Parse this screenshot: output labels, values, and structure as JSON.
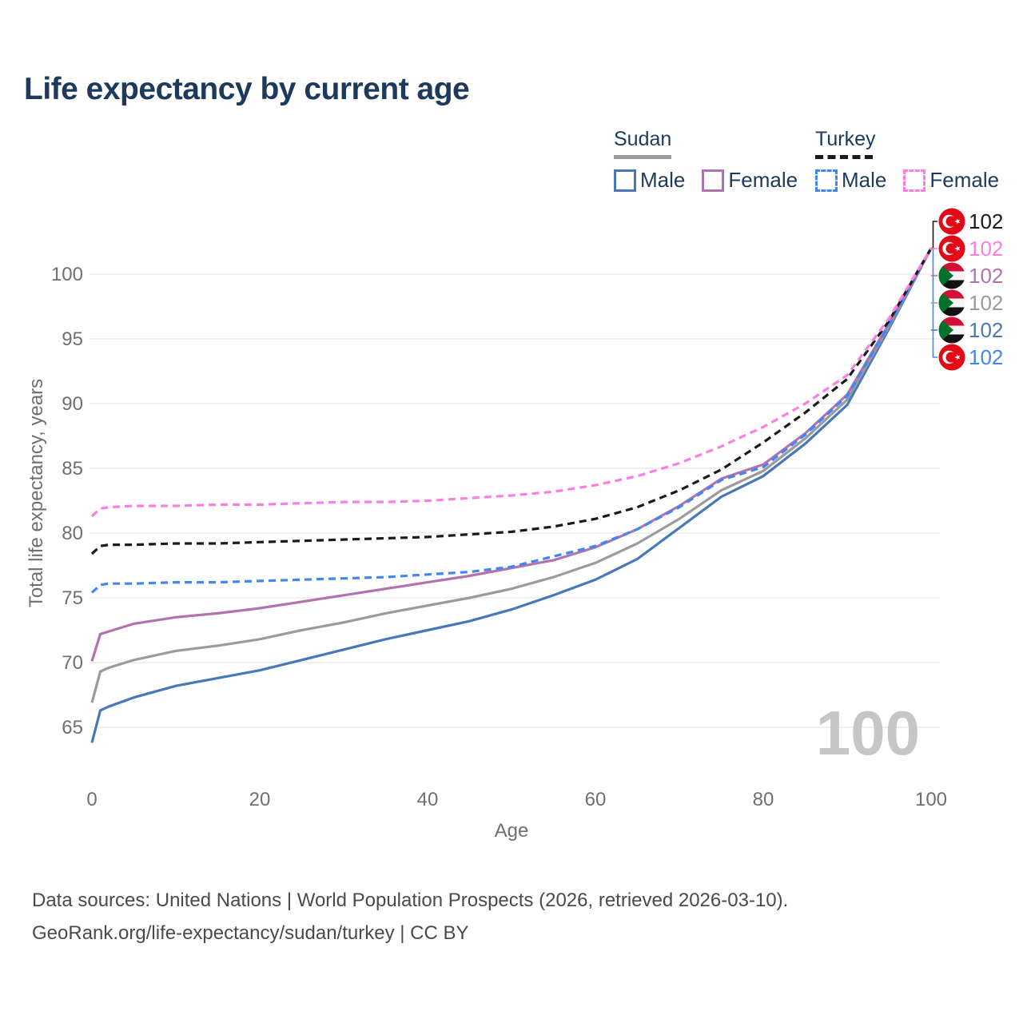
{
  "title": "Life expectancy by current age",
  "legend": {
    "groups": [
      {
        "name": "Sudan",
        "line_style": "solid",
        "swatch_color": "#9b9b9b",
        "items": [
          {
            "label": "Male",
            "color": "#4878b8"
          },
          {
            "label": "Female",
            "color": "#b173ad"
          }
        ]
      },
      {
        "name": "Turkey",
        "line_style": "dashed",
        "swatch_color": "#1a1a1a",
        "items": [
          {
            "label": "Male",
            "color": "#4285f4"
          },
          {
            "label": "Female",
            "color": "#fc7ee3"
          }
        ]
      }
    ]
  },
  "watermark": "100",
  "footer": {
    "line1": "Data sources: United Nations | World Population Prospects (2026, retrieved 2026-03-10).",
    "line2": "GeoRank.org/life-expectancy/sudan/turkey | CC BY"
  },
  "colors": {
    "title_text": "#1d3a5c",
    "legend_text": "#1d3a5c",
    "axis_text": "#6f6f6f",
    "gridline": "#ececec",
    "watermark": "#c6c6c6",
    "footer_text": "#4a4a4a",
    "leader_top": "#1a1a1a",
    "leader_bottom": "#4285f4",
    "turkey_flag_red": "#e30a17",
    "sudan_flag_red": "#d21034",
    "sudan_flag_green": "#007229",
    "sudan_flag_black": "#111111"
  },
  "chart_data": {
    "type": "line",
    "title": "Life expectancy by current age",
    "xlabel": "Age",
    "ylabel": "Total life expectancy, years",
    "x_ticks": [
      0,
      20,
      40,
      60,
      80,
      100
    ],
    "y_ticks": [
      65,
      70,
      75,
      80,
      85,
      90,
      95,
      100
    ],
    "xlim": [
      0,
      100
    ],
    "ylim": [
      63,
      103
    ],
    "grid": "horizontal-only",
    "legend_position": "top-right",
    "ages": [
      0,
      1,
      2,
      5,
      10,
      15,
      20,
      25,
      30,
      35,
      40,
      45,
      50,
      55,
      60,
      65,
      70,
      75,
      80,
      85,
      90,
      95,
      100
    ],
    "series": [
      {
        "name": "Sudan Male",
        "country": "Sudan",
        "sex": "Male",
        "color": "#4878b8",
        "dashed": false,
        "flag": "sudan",
        "end_value_label": "102",
        "right_row": 4,
        "values": [
          63.8,
          66.3,
          66.6,
          67.3,
          68.2,
          68.8,
          69.4,
          70.2,
          71.0,
          71.8,
          72.5,
          73.2,
          74.1,
          75.2,
          76.4,
          78.0,
          80.4,
          82.8,
          84.4,
          86.9,
          89.9,
          95.8,
          102
        ]
      },
      {
        "name": "Sudan Both sexes",
        "country": "Sudan",
        "sex": "Both sexes",
        "color": "#9b9b9b",
        "dashed": false,
        "flag": "sudan",
        "end_value_label": "102",
        "right_row": 3,
        "values": [
          66.9,
          69.3,
          69.6,
          70.2,
          70.9,
          71.3,
          71.8,
          72.5,
          73.1,
          73.8,
          74.4,
          75.0,
          75.7,
          76.6,
          77.7,
          79.2,
          81.1,
          83.3,
          84.8,
          87.3,
          90.3,
          96.0,
          102
        ]
      },
      {
        "name": "Sudan Female",
        "country": "Sudan",
        "sex": "Female",
        "color": "#b173ad",
        "dashed": false,
        "flag": "sudan",
        "end_value_label": "102",
        "right_row": 2,
        "values": [
          70.1,
          72.2,
          72.4,
          73.0,
          73.5,
          73.8,
          74.2,
          74.7,
          75.2,
          75.7,
          76.2,
          76.7,
          77.3,
          77.9,
          78.9,
          80.3,
          82.1,
          84.2,
          85.3,
          87.7,
          90.7,
          96.2,
          102
        ]
      },
      {
        "name": "Turkey Male",
        "country": "Turkey",
        "sex": "Male",
        "color": "#4285f4",
        "dashed": true,
        "flag": "turkey",
        "end_value_label": "102",
        "right_row": 5,
        "values": [
          75.4,
          76.0,
          76.1,
          76.1,
          76.2,
          76.2,
          76.3,
          76.4,
          76.5,
          76.6,
          76.8,
          77.0,
          77.4,
          78.2,
          79.0,
          80.3,
          82.0,
          84.1,
          85.1,
          87.6,
          90.6,
          96.1,
          102
        ]
      },
      {
        "name": "Turkey Both sexes",
        "country": "Turkey",
        "sex": "Both sexes",
        "color": "#1a1a1a",
        "dashed": true,
        "flag": "turkey",
        "end_value_label": "102",
        "right_row": 0,
        "values": [
          78.4,
          79.0,
          79.1,
          79.1,
          79.2,
          79.2,
          79.3,
          79.4,
          79.5,
          79.6,
          79.7,
          79.9,
          80.1,
          80.5,
          81.1,
          82.0,
          83.3,
          84.9,
          87.0,
          89.3,
          91.9,
          96.4,
          102
        ]
      },
      {
        "name": "Turkey Female",
        "country": "Turkey",
        "sex": "Female",
        "color": "#fc7ee3",
        "dashed": true,
        "flag": "turkey",
        "end_value_label": "102",
        "right_row": 1,
        "values": [
          81.3,
          81.9,
          82.0,
          82.1,
          82.1,
          82.2,
          82.2,
          82.3,
          82.4,
          82.4,
          82.5,
          82.7,
          82.9,
          83.2,
          83.7,
          84.4,
          85.4,
          86.7,
          88.2,
          90.0,
          92.2,
          96.6,
          102
        ]
      }
    ]
  }
}
